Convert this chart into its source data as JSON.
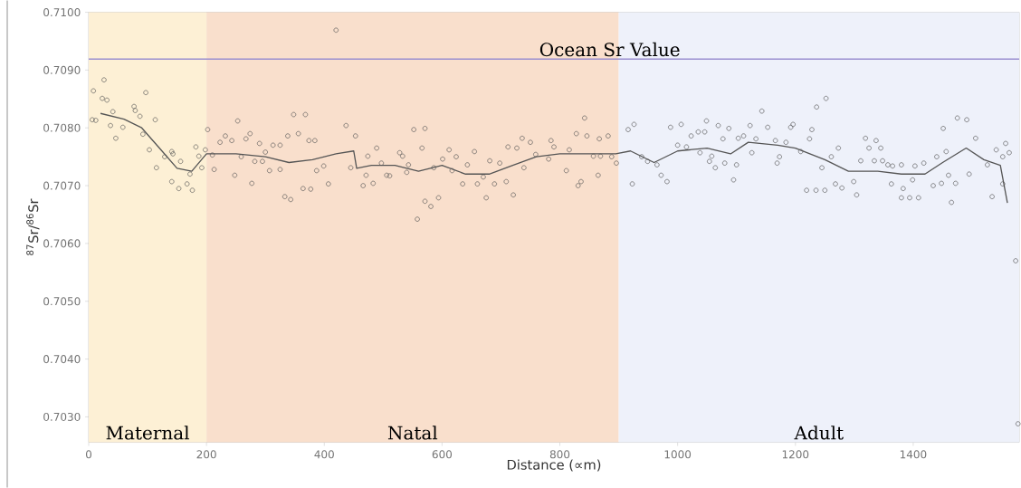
{
  "chart_data": {
    "type": "scatter",
    "xlabel": "Distance (∝m)",
    "ylabel": "$^{87}$Sr/$^{86}$Sr",
    "xlim": [
      0,
      1580
    ],
    "ylim": [
      0.70256,
      0.71
    ],
    "xticks": [
      0,
      200,
      400,
      600,
      800,
      1000,
      1200,
      1400
    ],
    "yticks": [
      {
        "value": 0.703,
        "label": "0.7030"
      },
      {
        "value": 0.704,
        "label": "0.7040"
      },
      {
        "value": 0.705,
        "label": "0.7050"
      },
      {
        "value": 0.706,
        "label": "0.7060"
      },
      {
        "value": 0.707,
        "label": "0.7070"
      },
      {
        "value": 0.708,
        "label": "0.7080"
      },
      {
        "value": 0.709,
        "label": "0.7090"
      },
      {
        "value": 0.71,
        "label": "0.7100"
      }
    ],
    "bands": [
      {
        "axis": "x",
        "from": 0,
        "to": 200,
        "label": "Maternal",
        "color": "#fdf0d5"
      },
      {
        "axis": "x",
        "from": 200,
        "to": 900,
        "label": "Natal",
        "color": "#f9dfcc"
      },
      {
        "axis": "x",
        "from": 900,
        "to": 1580,
        "label": "Adult",
        "color": "#eef1fa"
      }
    ],
    "ref_lines": [
      {
        "axis": "y",
        "value": 0.70919,
        "label": "Ocean Sr Value",
        "color": "#9a8fd0",
        "line_style": "solid"
      }
    ],
    "series": [
      {
        "marker": "circle",
        "color": "#555555",
        "x": [
          8,
          26,
          23,
          31,
          6,
          12,
          41,
          37,
          58,
          46,
          77,
          79,
          87,
          97,
          113,
          92,
          103,
          115,
          129,
          141,
          143,
          141,
          153,
          167,
          176,
          172,
          156,
          182,
          187,
          192,
          198,
          202,
          210,
          213,
          232,
          223,
          243,
          253,
          267,
          274,
          248,
          259,
          277,
          290,
          300,
          313,
          325,
          282,
          295,
          307,
          325,
          333,
          343,
          348,
          368,
          338,
          356,
          374,
          364,
          377,
          384,
          407,
          387,
          399,
          420,
          437,
          453,
          445,
          471,
          466,
          483,
          474,
          489,
          497,
          506,
          511,
          528,
          533,
          543,
          540,
          552,
          571,
          566,
          571,
          581,
          594,
          558,
          586,
          601,
          612,
          624,
          617,
          635,
          655,
          643,
          660,
          670,
          675,
          681,
          689,
          698,
          709,
          721,
          712,
          727,
          736,
          750,
          739,
          759,
          785,
          790,
          781,
          811,
          831,
          836,
          816,
          828,
          842,
          846,
          865,
          867,
          882,
          857,
          869,
          888,
          896,
          916,
          926,
          939,
          949,
          965,
          972,
          982,
          923,
          988,
          1000,
          1006,
          1015,
          1023,
          1035,
          1046,
          1049,
          1038,
          1054,
          1064,
          1058,
          1069,
          1080,
          1087,
          1077,
          1095,
          1100,
          1103,
          1112,
          1123,
          1133,
          1126,
          1143,
          1153,
          1166,
          1173,
          1169,
          1184,
          1196,
          1192,
          1209,
          1224,
          1228,
          1236,
          1252,
          1245,
          1219,
          1235,
          1250,
          1261,
          1273,
          1268,
          1279,
          1299,
          1304,
          1311,
          1319,
          1325,
          1337,
          1345,
          1334,
          1348,
          1357,
          1365,
          1380,
          1363,
          1380,
          1394,
          1409,
          1383,
          1399,
          1403,
          1418,
          1434,
          1448,
          1440,
          1451,
          1456,
          1460,
          1465,
          1472,
          1475,
          1491,
          1495,
          1506,
          1526,
          1534,
          1541,
          1552,
          1557,
          1563,
          1552,
          1574,
          1578
        ],
        "values": [
          0.70864,
          0.70883,
          0.70851,
          0.70848,
          0.70814,
          0.70813,
          0.70828,
          0.70804,
          0.70801,
          0.70782,
          0.70837,
          0.7083,
          0.7082,
          0.70861,
          0.70814,
          0.70789,
          0.70762,
          0.70731,
          0.7075,
          0.70759,
          0.70755,
          0.70707,
          0.70695,
          0.70703,
          0.70692,
          0.7072,
          0.70742,
          0.70767,
          0.70751,
          0.70731,
          0.70762,
          0.70797,
          0.70753,
          0.70728,
          0.70786,
          0.70775,
          0.70778,
          0.70812,
          0.70781,
          0.7079,
          0.70718,
          0.7075,
          0.70704,
          0.70773,
          0.70758,
          0.7077,
          0.7077,
          0.70742,
          0.70742,
          0.70726,
          0.70728,
          0.70681,
          0.70676,
          0.70823,
          0.70823,
          0.70786,
          0.7079,
          0.70778,
          0.70695,
          0.70694,
          0.70778,
          0.70703,
          0.70726,
          0.70734,
          0.70969,
          0.70804,
          0.70786,
          0.70731,
          0.70718,
          0.707,
          0.70704,
          0.70751,
          0.70765,
          0.70739,
          0.70718,
          0.70717,
          0.70757,
          0.70751,
          0.70736,
          0.70723,
          0.70797,
          0.70799,
          0.70765,
          0.70673,
          0.70664,
          0.70679,
          0.70642,
          0.70731,
          0.70746,
          0.70762,
          0.7075,
          0.70726,
          0.70703,
          0.70759,
          0.70736,
          0.70703,
          0.70715,
          0.70679,
          0.70743,
          0.70703,
          0.70739,
          0.70707,
          0.70684,
          0.70767,
          0.70765,
          0.70782,
          0.70775,
          0.70731,
          0.70754,
          0.70778,
          0.70767,
          0.70746,
          0.70726,
          0.707,
          0.70707,
          0.70762,
          0.7079,
          0.70817,
          0.70786,
          0.70718,
          0.70781,
          0.70786,
          0.70751,
          0.70751,
          0.7075,
          0.70739,
          0.70797,
          0.70806,
          0.7075,
          0.70742,
          0.70736,
          0.70718,
          0.70707,
          0.70703,
          0.70801,
          0.7077,
          0.70806,
          0.70767,
          0.70786,
          0.70793,
          0.70793,
          0.70812,
          0.70757,
          0.70742,
          0.70731,
          0.70751,
          0.70804,
          0.70739,
          0.70799,
          0.70781,
          0.7071,
          0.70736,
          0.70782,
          0.70786,
          0.70804,
          0.70781,
          0.70757,
          0.70829,
          0.70801,
          0.70778,
          0.7075,
          0.70739,
          0.70775,
          0.70806,
          0.70801,
          0.70759,
          0.70781,
          0.70797,
          0.70836,
          0.70851,
          0.70731,
          0.70692,
          0.70692,
          0.70692,
          0.7075,
          0.70765,
          0.70703,
          0.70696,
          0.70707,
          0.70684,
          0.70743,
          0.70782,
          0.70765,
          0.70778,
          0.70765,
          0.70743,
          0.70743,
          0.70736,
          0.70734,
          0.70736,
          0.70703,
          0.70679,
          0.70679,
          0.70679,
          0.70695,
          0.7071,
          0.70734,
          0.70739,
          0.707,
          0.70704,
          0.7075,
          0.70799,
          0.70759,
          0.70718,
          0.70671,
          0.70704,
          0.70817,
          0.70814,
          0.7072,
          0.70782,
          0.70736,
          0.70681,
          0.70762,
          0.7075,
          0.70773,
          0.70757,
          0.70703,
          0.7057,
          0.70288
        ]
      },
      {
        "type": "line",
        "color": "#555555",
        "line_style": "solid",
        "x": [
          20,
          60,
          90,
          120,
          150,
          175,
          200,
          250,
          300,
          340,
          380,
          420,
          450,
          455,
          480,
          520,
          560,
          600,
          640,
          680,
          720,
          760,
          800,
          850,
          895,
          920,
          960,
          1000,
          1050,
          1090,
          1120,
          1170,
          1200,
          1250,
          1290,
          1340,
          1380,
          1420,
          1450,
          1490,
          1520,
          1548,
          1560
        ],
        "values": [
          0.70825,
          0.70815,
          0.708,
          0.70765,
          0.7073,
          0.70725,
          0.70755,
          0.70755,
          0.7075,
          0.7074,
          0.70745,
          0.70755,
          0.7076,
          0.7073,
          0.70735,
          0.70735,
          0.70725,
          0.70735,
          0.7072,
          0.7072,
          0.70735,
          0.7075,
          0.70755,
          0.70755,
          0.70755,
          0.7076,
          0.7074,
          0.7076,
          0.70765,
          0.70755,
          0.70775,
          0.7077,
          0.70765,
          0.70745,
          0.70725,
          0.70725,
          0.7072,
          0.7072,
          0.7074,
          0.70765,
          0.70745,
          0.70735,
          0.7067
        ]
      }
    ]
  }
}
